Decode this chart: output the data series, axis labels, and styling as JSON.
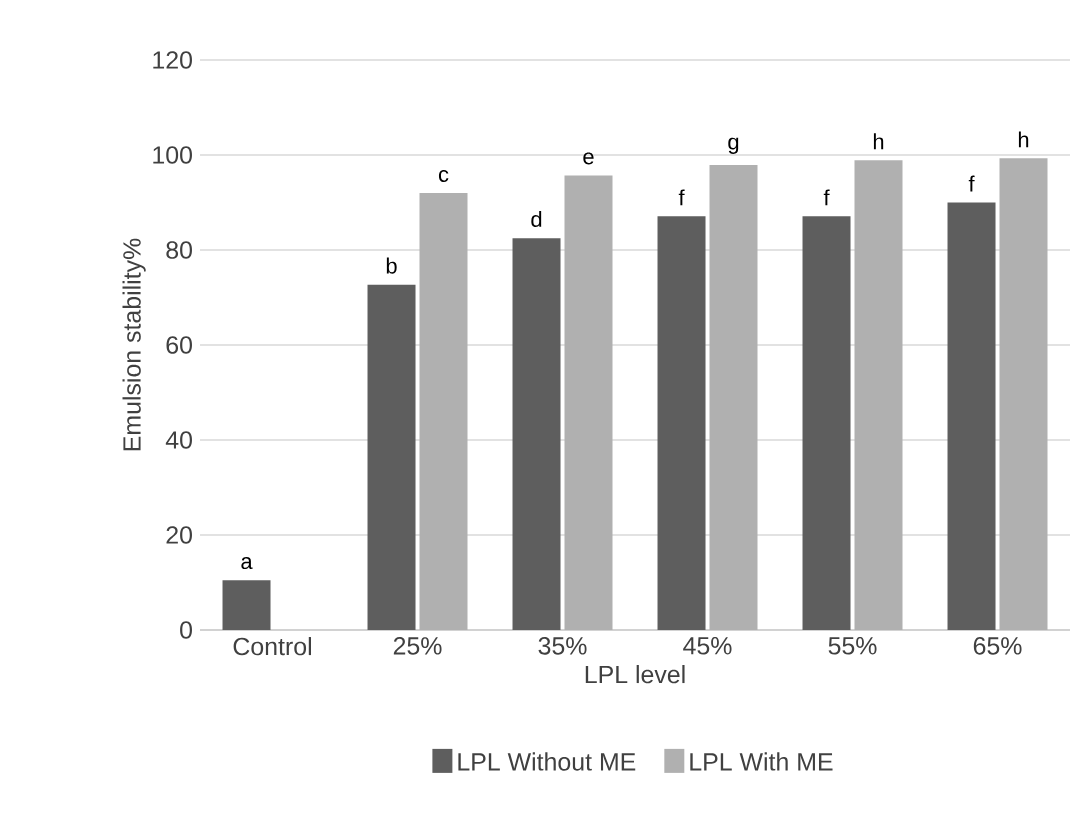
{
  "chart_data": {
    "type": "bar",
    "xlabel": "LPL level",
    "ylabel": "Emulsion stability%",
    "categories": [
      "Control",
      "25%",
      "35%",
      "45%",
      "55%",
      "65%"
    ],
    "series": [
      {
        "name": "LPL Without ME",
        "color": "#5e5e5e",
        "values": [
          10.5,
          72.7,
          82.5,
          87.1,
          87.1,
          90.0
        ],
        "value_labels": [
          "a",
          "b",
          "d",
          "f",
          "f",
          "f"
        ]
      },
      {
        "name": "LPL With ME",
        "color": "#b0b0b0",
        "values": [
          null,
          92.0,
          95.7,
          97.9,
          98.9,
          99.3
        ],
        "value_labels": [
          null,
          "c",
          "e",
          "g",
          "h",
          "h"
        ]
      }
    ],
    "ylim": [
      0,
      120
    ],
    "yticks": [
      0,
      20,
      40,
      60,
      80,
      100,
      120
    ],
    "grid": "y",
    "legend": "bottom"
  }
}
